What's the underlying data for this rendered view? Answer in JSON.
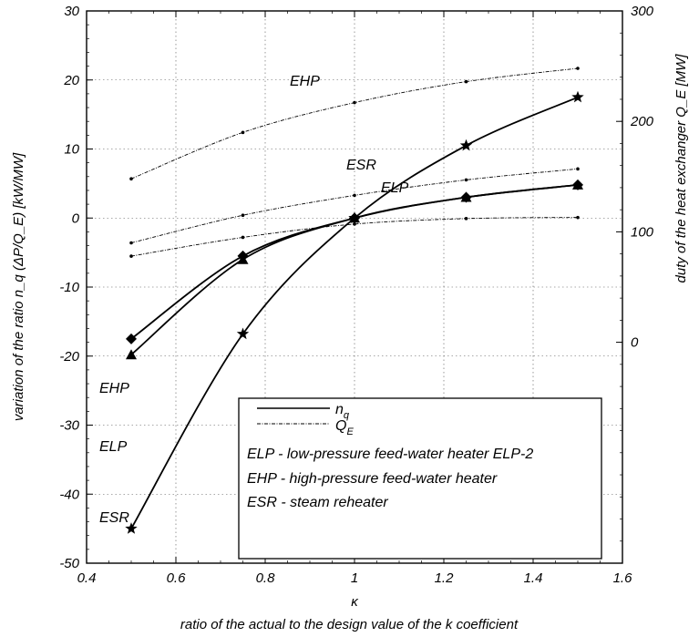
{
  "chart_data": {
    "type": "line",
    "xlabel_symbol": "κ",
    "xlabel": "ratio of the actual to the design value of the k coefficient",
    "ylabel_left": "variation of the ratio n_q (ΔP/Q_E) [kW/MW]",
    "ylabel_right": "duty of the heat exchanger Q_E [MW]",
    "xlim": [
      0.4,
      1.6
    ],
    "ylim_left": [
      -50,
      30
    ],
    "ylim_right": [
      -200,
      300
    ],
    "x_ticks": [
      "0.4",
      "0.6",
      "0.8",
      "1",
      "1.2",
      "1.4",
      "1.6"
    ],
    "y_ticks_left": [
      "30",
      "20",
      "10",
      "0",
      "-10",
      "-20",
      "-30",
      "-40",
      "-50"
    ],
    "y_ticks_right": [
      "300",
      "200",
      "100",
      "0"
    ],
    "grid": true,
    "legend_position": "bottom-right",
    "legend": [
      {
        "symbol": "n",
        "subscript": "q",
        "style": "solid"
      },
      {
        "symbol": "Q",
        "subscript": "E",
        "style": "dotted"
      },
      {
        "text": "ELP - low-pressure feed-water heater ELP-2"
      },
      {
        "text": "EHP - high-pressure feed-water heater"
      },
      {
        "text": "ESR - steam reheater"
      }
    ],
    "series": [
      {
        "name": "EHP",
        "kind": "n_q",
        "axis": "left",
        "marker": "diamond",
        "x": [
          0.5,
          0.75,
          1.0,
          1.25,
          1.5
        ],
        "y": [
          -17.5,
          -5.5,
          0,
          3.0,
          4.8
        ]
      },
      {
        "name": "ELP",
        "kind": "n_q",
        "axis": "left",
        "marker": "triangle",
        "x": [
          0.5,
          0.75,
          1.0,
          1.25,
          1.5
        ],
        "y": [
          -19.8,
          -6.0,
          0,
          3.0,
          4.8
        ]
      },
      {
        "name": "ESR",
        "kind": "n_q",
        "axis": "left",
        "marker": "star",
        "x": [
          0.5,
          0.75,
          1.0,
          1.25,
          1.5
        ],
        "y": [
          -45.0,
          -16.8,
          0,
          10.5,
          17.5
        ]
      },
      {
        "name": "EHP",
        "kind": "Q_E",
        "axis": "right",
        "marker": "dot",
        "x": [
          0.5,
          0.75,
          1.0,
          1.25,
          1.5
        ],
        "y": [
          148,
          190,
          217,
          236,
          248
        ]
      },
      {
        "name": "ESR",
        "kind": "Q_E",
        "axis": "right",
        "marker": "dot",
        "x": [
          0.5,
          0.75,
          1.0,
          1.25,
          1.5
        ],
        "y": [
          90,
          115,
          133,
          147,
          157
        ]
      },
      {
        "name": "ELP",
        "kind": "Q_E",
        "axis": "right",
        "marker": "dot",
        "x": [
          0.5,
          0.75,
          1.0,
          1.25,
          1.5
        ],
        "y": [
          78,
          95,
          107,
          112,
          113
        ]
      }
    ],
    "series_labels": [
      {
        "text": "EHP",
        "target": "Q_E EHP"
      },
      {
        "text": "ESR",
        "target": "Q_E ESR"
      },
      {
        "text": "ELP",
        "target": "Q_E ELP"
      },
      {
        "text": "EHP",
        "target": "n_q EHP"
      },
      {
        "text": "ELP",
        "target": "n_q ELP"
      },
      {
        "text": "ESR",
        "target": "n_q ESR"
      }
    ]
  }
}
